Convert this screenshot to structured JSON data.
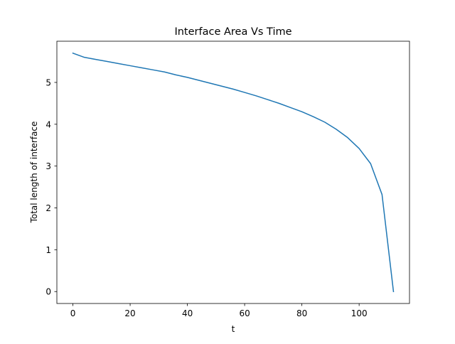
{
  "chart_data": {
    "type": "line",
    "title": "Interface Area Vs Time",
    "xlabel": "t",
    "ylabel": "Total length of interface",
    "xlim": [
      -5.6,
      117.6
    ],
    "ylim": [
      -0.285,
      5.985
    ],
    "xticks": [
      0,
      20,
      40,
      60,
      80,
      100
    ],
    "yticks": [
      0,
      1,
      2,
      3,
      4,
      5
    ],
    "grid": false,
    "legend": "none",
    "series": [
      {
        "color": "#1f77b4",
        "x": [
          0,
          4,
          8,
          12,
          16,
          20,
          24,
          28,
          32,
          36,
          40,
          44,
          48,
          52,
          56,
          60,
          64,
          68,
          72,
          76,
          80,
          84,
          88,
          92,
          96,
          100,
          104,
          108,
          112
        ],
        "y": [
          5.7,
          5.6,
          5.55,
          5.5,
          5.45,
          5.4,
          5.35,
          5.3,
          5.25,
          5.18,
          5.12,
          5.05,
          4.98,
          4.91,
          4.84,
          4.76,
          4.68,
          4.59,
          4.5,
          4.4,
          4.3,
          4.18,
          4.05,
          3.88,
          3.68,
          3.42,
          3.06,
          2.32,
          0.0
        ]
      }
    ]
  }
}
